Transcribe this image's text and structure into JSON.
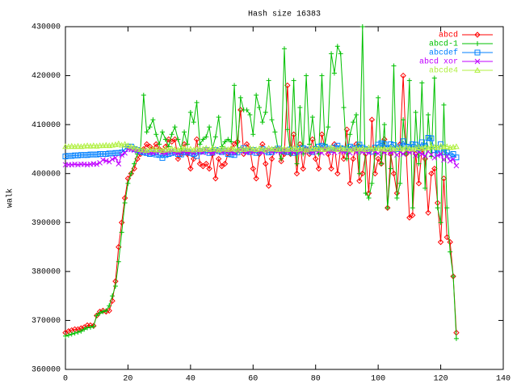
{
  "chart_data": {
    "type": "line",
    "title": "Hash size 16383",
    "y_label": "walk",
    "xlim": [
      0,
      140
    ],
    "xticks": [
      0,
      20,
      40,
      60,
      80,
      100,
      120,
      140
    ],
    "ylim": [
      360000,
      430000
    ],
    "yticks": [
      360000,
      370000,
      380000,
      390000,
      400000,
      410000,
      420000,
      430000
    ],
    "legend": "top-right",
    "x": [
      0,
      1,
      2,
      3,
      4,
      5,
      6,
      7,
      8,
      9,
      10,
      11,
      12,
      13,
      14,
      15,
      16,
      17,
      18,
      19,
      20,
      21,
      22,
      23,
      24,
      25,
      26,
      27,
      28,
      29,
      30,
      31,
      32,
      33,
      34,
      35,
      36,
      37,
      38,
      39,
      40,
      41,
      42,
      43,
      44,
      45,
      46,
      47,
      48,
      49,
      50,
      51,
      52,
      53,
      54,
      55,
      56,
      57,
      58,
      59,
      60,
      61,
      62,
      63,
      64,
      65,
      66,
      67,
      68,
      69,
      70,
      71,
      72,
      73,
      74,
      75,
      76,
      77,
      78,
      79,
      80,
      81,
      82,
      83,
      84,
      85,
      86,
      87,
      88,
      89,
      90,
      91,
      92,
      93,
      94,
      95,
      96,
      97,
      98,
      99,
      100,
      101,
      102,
      103,
      104,
      105,
      106,
      107,
      108,
      109,
      110,
      111,
      112,
      113,
      114,
      115,
      116,
      117,
      118,
      119,
      120,
      121,
      122,
      123,
      124,
      125
    ],
    "series": [
      {
        "name": "abcd",
        "color": "#ff0000",
        "marker": "diamond",
        "values": [
          367500,
          367800,
          368000,
          368200,
          368200,
          368400,
          368600,
          369000,
          369000,
          368900,
          371000,
          371800,
          372000,
          371800,
          372000,
          374000,
          378000,
          385000,
          390000,
          395000,
          399000,
          400000,
          401000,
          403000,
          404000,
          405000,
          406000,
          405500,
          405000,
          406000,
          405000,
          404500,
          405500,
          407000,
          406500,
          407000,
          403000,
          404000,
          406000,
          404000,
          401000,
          403000,
          407000,
          402000,
          401500,
          402000,
          401000,
          404000,
          399000,
          403000,
          401500,
          402000,
          404000,
          405000,
          406000,
          406500,
          413000,
          404000,
          406000,
          405000,
          401000,
          399000,
          404000,
          406000,
          402000,
          397500,
          403000,
          405000,
          405000,
          402500,
          404000,
          418000,
          404000,
          408000,
          400000,
          406000,
          401000,
          405000,
          404000,
          407000,
          403000,
          401000,
          408000,
          405000,
          404000,
          401000,
          406000,
          400000,
          405000,
          403000,
          409000,
          398000,
          403000,
          406000,
          398500,
          400000,
          404000,
          396000,
          411000,
          400000,
          403000,
          402000,
          407000,
          393000,
          404000,
          400000,
          396000,
          406000,
          420000,
          404000,
          391000,
          391500,
          404000,
          398000,
          405000,
          403000,
          392000,
          400000,
          401000,
          394000,
          386000,
          399000,
          387000,
          386000,
          379000,
          367500
        ]
      },
      {
        "name": "abcd-1",
        "color": "#00c000",
        "marker": "plus",
        "values": [
          366800,
          367000,
          367200,
          367400,
          367600,
          367800,
          368200,
          368500,
          368600,
          368800,
          371000,
          371500,
          371800,
          372000,
          373000,
          375000,
          377000,
          382000,
          388000,
          394000,
          398000,
          400000,
          402000,
          404000,
          405000,
          416000,
          408500,
          409500,
          411000,
          408000,
          406000,
          408500,
          407000,
          405500,
          408000,
          409500,
          407000,
          405000,
          408500,
          406000,
          412500,
          410500,
          414500,
          406000,
          407000,
          407500,
          409500,
          405000,
          407500,
          411500,
          405500,
          406500,
          407000,
          406500,
          418000,
          404500,
          415500,
          413000,
          413000,
          412000,
          408000,
          416000,
          413500,
          410500,
          412500,
          419000,
          411000,
          408500,
          405000,
          403000,
          425500,
          409000,
          404000,
          419000,
          402000,
          413500,
          404000,
          420000,
          406000,
          411500,
          405500,
          404000,
          420000,
          406000,
          409500,
          424500,
          420500,
          426000,
          424500,
          413500,
          403000,
          408000,
          410500,
          412000,
          400000,
          430000,
          396000,
          395000,
          398000,
          404000,
          415500,
          402000,
          410000,
          393000,
          401000,
          422000,
          395000,
          398000,
          411000,
          404000,
          419000,
          393000,
          412500,
          402000,
          418500,
          397000,
          412000,
          403500,
          419500,
          393000,
          390000,
          414000,
          393000,
          384000,
          379000,
          366300
        ]
      },
      {
        "name": "abcdef",
        "color": "#0080ff",
        "marker": "square",
        "values": [
          403500,
          403600,
          403600,
          403700,
          403700,
          403800,
          403800,
          403800,
          403900,
          403900,
          403900,
          404000,
          404000,
          404000,
          404100,
          404100,
          404200,
          404200,
          404300,
          405000,
          405500,
          405500,
          405000,
          404800,
          404500,
          404300,
          404200,
          404000,
          404200,
          403900,
          403800,
          403200,
          403800,
          404000,
          404200,
          404400,
          404000,
          403900,
          404300,
          404500,
          404200,
          404000,
          403600,
          404600,
          404500,
          404800,
          404200,
          404300,
          404800,
          404600,
          404400,
          404700,
          404000,
          403900,
          403800,
          404300,
          404800,
          405200,
          404600,
          404400,
          404800,
          404200,
          404600,
          405000,
          404600,
          404300,
          404400,
          404800,
          405100,
          404700,
          404600,
          404400,
          404900,
          404200,
          404500,
          405000,
          405200,
          404900,
          404700,
          404400,
          405000,
          405500,
          405700,
          405400,
          405100,
          404800,
          405300,
          405700,
          405200,
          405000,
          404800,
          405500,
          405200,
          405100,
          405900,
          405300,
          405000,
          404800,
          404500,
          405300,
          405900,
          406200,
          406000,
          405200,
          406000,
          405800,
          405000,
          405400,
          406600,
          405500,
          405400,
          406000,
          405900,
          405100,
          406400,
          405600,
          407300,
          407200,
          404800,
          404100,
          406000,
          404400,
          404300,
          403700,
          404000,
          403300
        ]
      },
      {
        "name": "abcd xor",
        "color": "#c000ff",
        "marker": "cross",
        "values": [
          401800,
          401800,
          401800,
          401900,
          401800,
          401900,
          401900,
          401800,
          401900,
          402000,
          401900,
          402200,
          402800,
          402600,
          402400,
          402900,
          403200,
          402000,
          403800,
          404200,
          405000,
          404900,
          404800,
          404700,
          404500,
          404600,
          404400,
          404300,
          404200,
          404400,
          404500,
          404300,
          404100,
          404400,
          404600,
          404300,
          404200,
          404400,
          404500,
          404300,
          404400,
          404200,
          404600,
          404500,
          404300,
          404800,
          404400,
          404200,
          404500,
          404700,
          404300,
          404600,
          404500,
          404400,
          404200,
          404600,
          404800,
          404500,
          404300,
          404600,
          404400,
          404700,
          404500,
          404300,
          404600,
          404800,
          404400,
          404700,
          404500,
          404300,
          404800,
          404500,
          404600,
          404300,
          404700,
          404400,
          404500,
          404800,
          404600,
          404300,
          404700,
          404500,
          404200,
          404900,
          404400,
          404600,
          404300,
          404800,
          404500,
          404400,
          404600,
          404200,
          404900,
          404300,
          404700,
          404400,
          404500,
          404200,
          404800,
          404400,
          404100,
          404700,
          404300,
          404600,
          404200,
          404500,
          403800,
          404400,
          404000,
          404700,
          404300,
          404600,
          403700,
          404400,
          404000,
          403600,
          404500,
          403900,
          403200,
          403700,
          404000,
          402800,
          403500,
          402600,
          402900,
          401600
        ]
      },
      {
        "name": "abcde4",
        "color": "#b0f040",
        "marker": "triangle",
        "values": [
          405500,
          405500,
          405600,
          405500,
          405600,
          405500,
          405600,
          405700,
          405600,
          405700,
          405600,
          405700,
          405700,
          405800,
          405700,
          405800,
          405900,
          406100,
          405800,
          406000,
          405700,
          405500,
          405300,
          405000,
          404900,
          404800,
          404700,
          404900,
          405000,
          404800,
          404900,
          404700,
          405000,
          404800,
          405100,
          404900,
          404800,
          405000,
          405200,
          404900,
          405000,
          404800,
          405100,
          404900,
          405000,
          405200,
          404900,
          405100,
          405000,
          404800,
          405000,
          405100,
          404900,
          405200,
          405000,
          404800,
          405100,
          404900,
          405000,
          405200,
          405000,
          404900,
          405100,
          405000,
          404800,
          405200,
          405000,
          405100,
          404900,
          405000,
          405100,
          404900,
          405000,
          405200,
          404900,
          405100,
          405000,
          404800,
          405000,
          405100,
          405000,
          405200,
          404900,
          405100,
          405000,
          405300,
          405000,
          404900,
          405200,
          405000,
          405100,
          404800,
          405000,
          405200,
          405000,
          405100,
          404900,
          405300,
          405000,
          405100,
          405200,
          405000,
          405100,
          404900,
          405300,
          405000,
          405100,
          405200,
          405000,
          405300,
          405100,
          405000,
          405200,
          405400,
          405100,
          405300,
          405200,
          405500,
          405400,
          405300,
          405600,
          405400,
          405500,
          405300,
          405400,
          405500
        ]
      }
    ]
  }
}
